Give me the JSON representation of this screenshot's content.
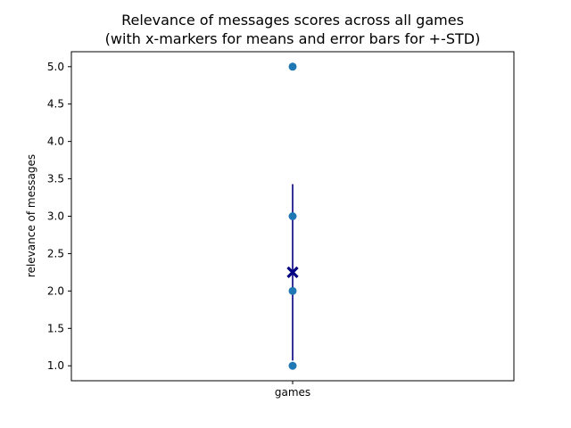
{
  "chart_data": {
    "type": "scatter",
    "title_lines": [
      "Relevance of messages scores across all games",
      "(with x-markers for means and error bars for +-STD)"
    ],
    "xlabel": "",
    "ylabel": "relevance of messages",
    "categories": [
      "games"
    ],
    "yticks": [
      "1.0",
      "1.5",
      "2.0",
      "2.5",
      "3.0",
      "3.5",
      "4.0",
      "4.5",
      "5.0"
    ],
    "ylim": [
      0.8,
      5.2
    ],
    "points": [
      {
        "category": "games",
        "y": 1.0
      },
      {
        "category": "games",
        "y": 2.0
      },
      {
        "category": "games",
        "y": 3.0
      },
      {
        "category": "games",
        "y": 5.0
      }
    ],
    "mean": 2.25,
    "std": 1.18,
    "grid": false,
    "colors": {
      "point": "#1f77b4",
      "mean_marker": "#000080",
      "error_bar": "#000080"
    }
  }
}
